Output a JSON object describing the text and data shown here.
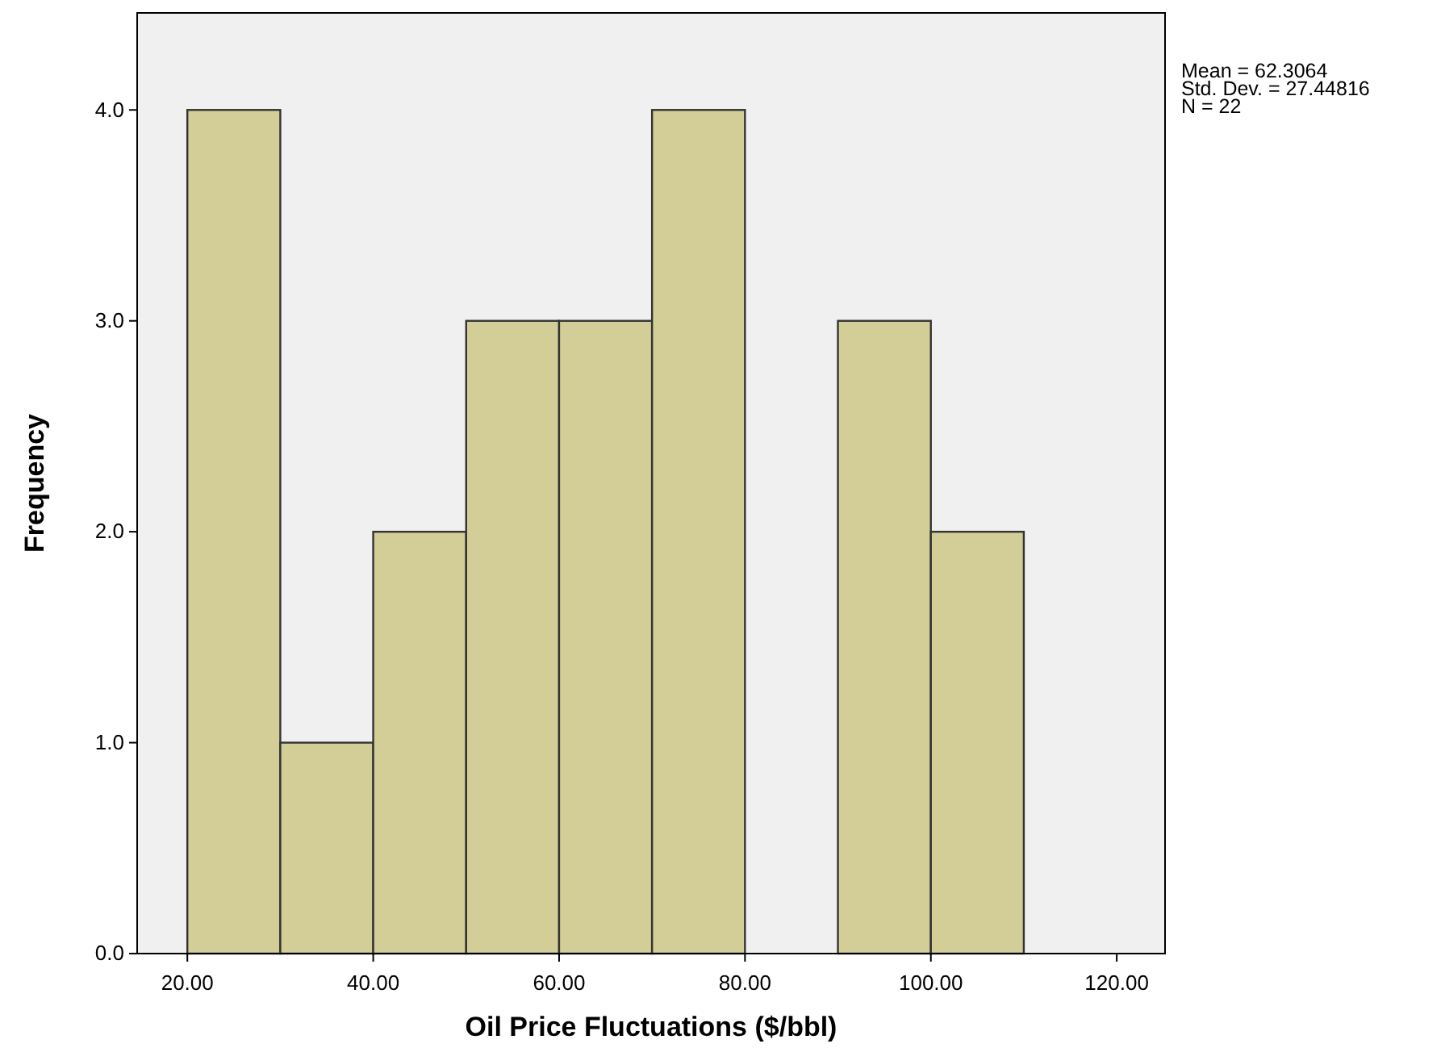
{
  "chart_data": {
    "type": "histogram",
    "xlabel": "Oil Price Fluctuations ($/bbl)",
    "ylabel": "Frequency",
    "bins": [
      20,
      30,
      40,
      50,
      60,
      70,
      80,
      90,
      100,
      110
    ],
    "values": [
      4,
      1,
      2,
      3,
      3,
      4,
      0,
      3,
      2
    ],
    "color": "#d3ce97",
    "xlim": [
      14.6,
      125.2
    ],
    "ylim": [
      0,
      4.46
    ],
    "xticks": [
      {
        "value": 20,
        "label": "20.00"
      },
      {
        "value": 40,
        "label": "40.00"
      },
      {
        "value": 60,
        "label": "60.00"
      },
      {
        "value": 80,
        "label": "80.00"
      },
      {
        "value": 100,
        "label": "100.00"
      },
      {
        "value": 120,
        "label": "120.00"
      }
    ],
    "yticks": [
      {
        "value": 0,
        "label": "0.0"
      },
      {
        "value": 1,
        "label": "1.0"
      },
      {
        "value": 2,
        "label": "2.0"
      },
      {
        "value": 3,
        "label": "3.0"
      },
      {
        "value": 4,
        "label": "4.0"
      }
    ],
    "grid": false,
    "annotations": [
      "Mean = 62.3064",
      "Std. Dev. = 27.44816",
      "N = 22"
    ]
  }
}
